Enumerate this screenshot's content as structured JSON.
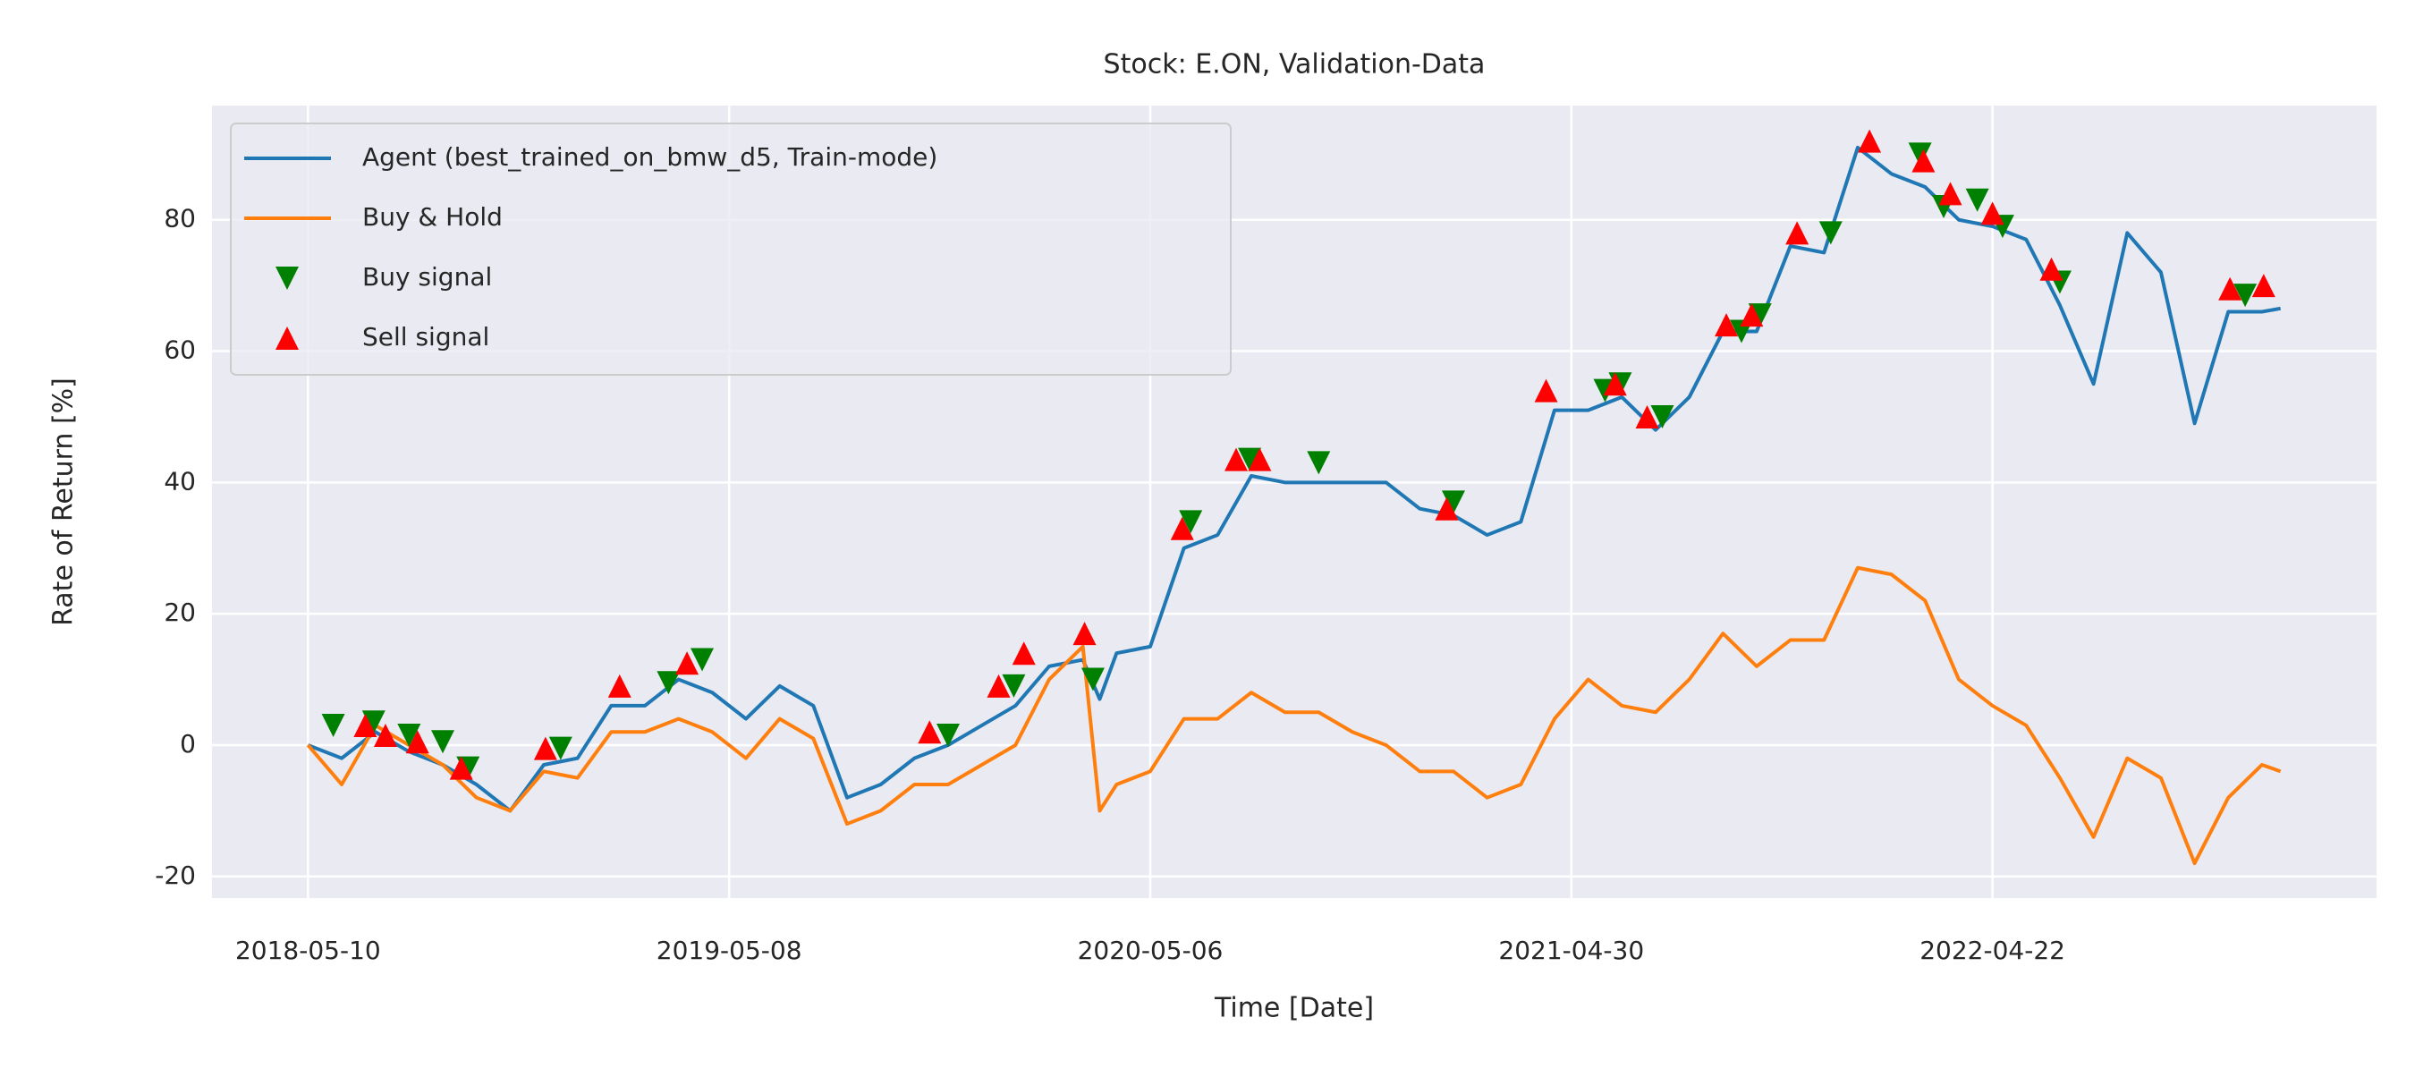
{
  "chart_data": {
    "type": "line",
    "title": "Stock: E.ON, Validation-Data",
    "x_label": "Time [Date]",
    "y_label": "Rate of Return [%]",
    "xlim": [
      -57,
      1228
    ],
    "ylim": [
      -23.3,
      97.4
    ],
    "xticks": [
      {
        "value": 0,
        "label": "2018-05-10"
      },
      {
        "value": 250,
        "label": "2019-05-08"
      },
      {
        "value": 500,
        "label": "2020-05-06"
      },
      {
        "value": 750,
        "label": "2021-04-30"
      },
      {
        "value": 1000,
        "label": "2022-04-22"
      }
    ],
    "yticks": [
      -20,
      0,
      20,
      40,
      60,
      80
    ],
    "grid": true,
    "legend": "upper left",
    "x": [
      0,
      20,
      40,
      60,
      80,
      100,
      120,
      140,
      160,
      180,
      200,
      220,
      240,
      260,
      280,
      300,
      320,
      340,
      360,
      380,
      400,
      420,
      440,
      460,
      470,
      480,
      500,
      520,
      540,
      560,
      580,
      600,
      620,
      640,
      660,
      680,
      700,
      720,
      740,
      760,
      780,
      800,
      820,
      840,
      860,
      880,
      900,
      920,
      940,
      960,
      980,
      1000,
      1020,
      1040,
      1060,
      1080,
      1100,
      1120,
      1140,
      1160,
      1171
    ],
    "series": [
      {
        "name": "Agent (best_trained_on_bmw_d5, Train-mode)",
        "type": "line",
        "color": "#1f77b4",
        "values": [
          0,
          -2,
          2,
          -1,
          -3,
          -6,
          -10,
          -3,
          -2,
          6,
          6,
          10,
          8,
          4,
          9,
          6,
          -8,
          -6,
          -2,
          0,
          3,
          6,
          12,
          13,
          7,
          14,
          15,
          30,
          32,
          41,
          40,
          40,
          40,
          40,
          36,
          35,
          32,
          34,
          51,
          51,
          53,
          48,
          53,
          63,
          63,
          76,
          75,
          91,
          87,
          85,
          80,
          79,
          77,
          67,
          55,
          78,
          72,
          49,
          66,
          66,
          66.5
        ]
      },
      {
        "name": "Buy & Hold",
        "type": "line",
        "color": "#ff7f0e",
        "values": [
          0,
          -6,
          3,
          0,
          -3,
          -8,
          -10,
          -4,
          -5,
          2,
          2,
          4,
          2,
          -2,
          4,
          1,
          -12,
          -10,
          -6,
          -6,
          -3,
          0,
          10,
          15,
          -10,
          -6,
          -4,
          4,
          4,
          8,
          5,
          5,
          2,
          0,
          -4,
          -4,
          -8,
          -6,
          4,
          10,
          6,
          5,
          10,
          17,
          12,
          16,
          16,
          27,
          26,
          22,
          10,
          6,
          3,
          -5,
          -14,
          -2,
          -5,
          -18,
          -8,
          -3,
          -4
        ]
      },
      {
        "name": "Buy signal",
        "type": "scatter",
        "marker": "v",
        "color": "#008000",
        "x": [
          15,
          39,
          60,
          80,
          95,
          150,
          214,
          234,
          380,
          419,
          466,
          524,
          559,
          600,
          680,
          770,
          779,
          804,
          851,
          862,
          904,
          957,
          971,
          991,
          1006,
          1040,
          1150
        ],
        "values": [
          3,
          3.5,
          1.5,
          0.5,
          -3.5,
          -0.5,
          9.5,
          13,
          1.5,
          9,
          10,
          34,
          43.5,
          43,
          37,
          54,
          55,
          50,
          63,
          65.5,
          78,
          90,
          82,
          83,
          79,
          70.5,
          68.5
        ]
      },
      {
        "name": "Sell signal",
        "type": "scatter",
        "marker": "^",
        "color": "#ff0000",
        "x": [
          34,
          46,
          65,
          91,
          141,
          185,
          225,
          369,
          410,
          425,
          461,
          519,
          551,
          565,
          676,
          735,
          776,
          795,
          842,
          857,
          884,
          927,
          959,
          975,
          1000,
          1035,
          1141,
          1161
        ],
        "values": [
          3,
          1.5,
          0.5,
          -3.5,
          -0.5,
          9,
          12.5,
          2,
          9,
          14,
          17,
          33,
          43.5,
          43.5,
          36,
          54,
          55,
          50,
          64,
          65.5,
          78,
          92,
          89,
          84,
          81,
          72.5,
          69.5,
          70
        ]
      }
    ]
  }
}
